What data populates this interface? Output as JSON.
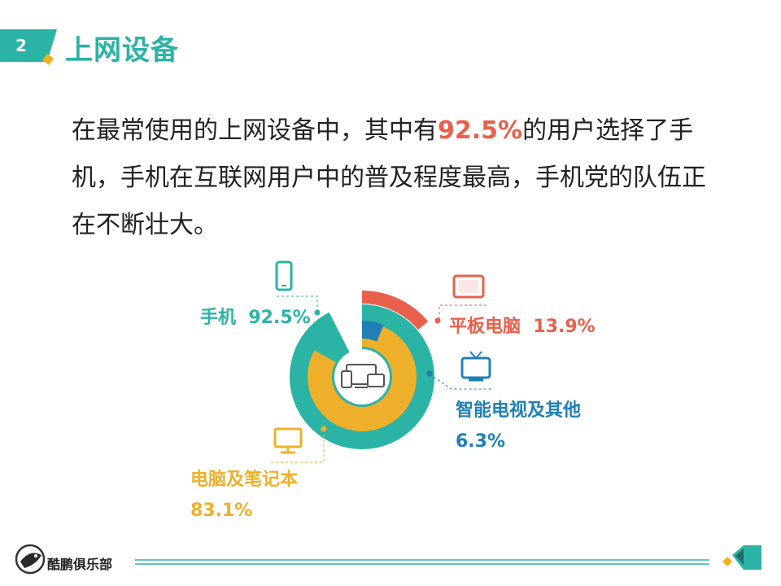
{
  "header": {
    "section_number": "2",
    "title": "上网设备"
  },
  "intro": {
    "before": "在最常使用的上网设备中，其中有",
    "highlight": "92.5%",
    "after": "的用户选择了手机，手机在互联网用户中的普及程度最高，手机党的队伍正在不断壮大。"
  },
  "chart_data": {
    "type": "pie",
    "categories": [
      "手机",
      "平板电脑",
      "智能电视及其他",
      "电脑及笔记本"
    ],
    "values": [
      92.5,
      13.9,
      6.3,
      83.1
    ],
    "value_labels": [
      "92.5%",
      "13.9%",
      "6.3%",
      "83.1%"
    ],
    "colors": [
      "#2bb3a5",
      "#e8604c",
      "#1f7fb6",
      "#eeb02a"
    ],
    "icons": [
      "mobile-phone-icon",
      "tablet-icon",
      "tv-icon",
      "monitor-icon"
    ],
    "center_icon": "devices-icon"
  },
  "footer": {
    "club_name": "酷鹏俱乐部",
    "logo_icon": "penguin-logo-icon"
  }
}
